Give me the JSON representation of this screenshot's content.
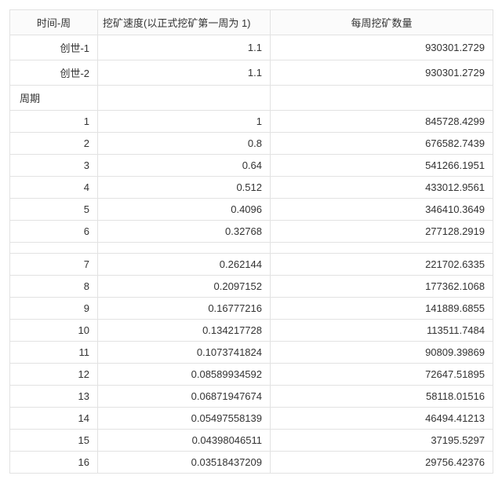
{
  "columns": {
    "time": "时间-周",
    "speed": "挖矿速度(以正式挖矿第一周为 1)",
    "qty": "每周挖矿数量"
  },
  "genesis": [
    {
      "time": "创世-1",
      "speed": "1.1",
      "qty": "930301.2729"
    },
    {
      "time": "创世-2",
      "speed": "1.1",
      "qty": "930301.2729"
    }
  ],
  "section_label": "周期",
  "block_a": [
    {
      "time": "1",
      "speed": "1",
      "qty": "845728.4299"
    },
    {
      "time": "2",
      "speed": "0.8",
      "qty": "676582.7439"
    },
    {
      "time": "3",
      "speed": "0.64",
      "qty": "541266.1951"
    },
    {
      "time": "4",
      "speed": "0.512",
      "qty": "433012.9561"
    },
    {
      "time": "5",
      "speed": "0.4096",
      "qty": "346410.3649"
    },
    {
      "time": "6",
      "speed": "0.32768",
      "qty": "277128.2919"
    }
  ],
  "block_b": [
    {
      "time": "7",
      "speed": "0.262144",
      "qty": "221702.6335"
    },
    {
      "time": "8",
      "speed": "0.2097152",
      "qty": "177362.1068"
    },
    {
      "time": "9",
      "speed": "0.16777216",
      "qty": "141889.6855"
    },
    {
      "time": "10",
      "speed": "0.134217728",
      "qty": "113511.7484"
    },
    {
      "time": "11",
      "speed": "0.1073741824",
      "qty": "90809.39869"
    },
    {
      "time": "12",
      "speed": "0.08589934592",
      "qty": "72647.51895"
    },
    {
      "time": "13",
      "speed": "0.06871947674",
      "qty": "58118.01516"
    },
    {
      "time": "14",
      "speed": "0.05497558139",
      "qty": "46494.41213"
    },
    {
      "time": "15",
      "speed": "0.04398046511",
      "qty": "37195.5297"
    },
    {
      "time": "16",
      "speed": "0.03518437209",
      "qty": "29756.42376"
    }
  ]
}
